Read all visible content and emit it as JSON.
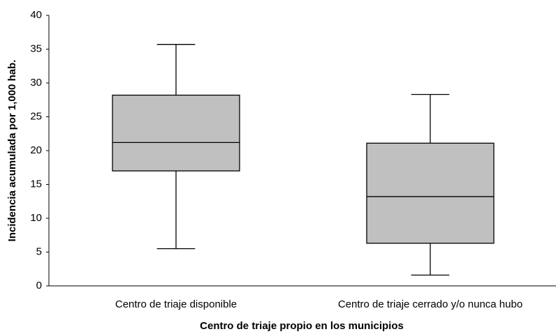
{
  "chart_data": {
    "type": "box",
    "xlabel": "Centro de triaje propio en los municipios",
    "ylabel": "Incidencia acumulada por 1,000 hab.",
    "categories": [
      "Centro de triaje disponible",
      "Centro de triaje cerrado y/o nunca hubo"
    ],
    "boxes": [
      {
        "min": 5.5,
        "q1": 17.0,
        "median": 21.2,
        "q3": 28.2,
        "max": 35.7
      },
      {
        "min": 1.6,
        "q1": 6.3,
        "median": 13.2,
        "q3": 21.1,
        "max": 28.3
      }
    ],
    "color": "#c0c0c0",
    "ylim": [
      0,
      40
    ],
    "yticks": [
      0,
      5,
      10,
      15,
      20,
      25,
      30,
      35,
      40
    ]
  }
}
